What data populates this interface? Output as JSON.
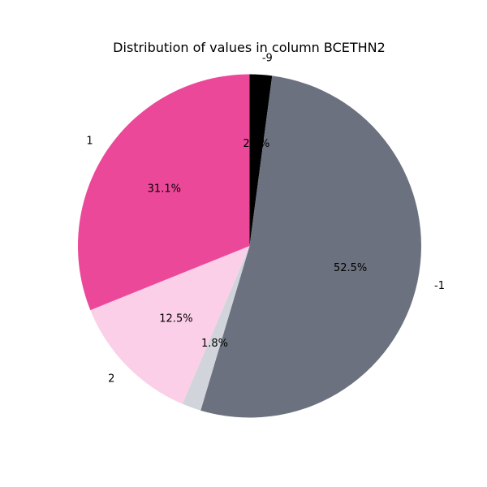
{
  "chart_data": {
    "type": "pie",
    "title": "Distribution of values in column BCETHN2",
    "start_angle_deg": 90,
    "direction": "clockwise",
    "slices": [
      {
        "label": "-9",
        "value": 2.1,
        "pct_label": "2.1%",
        "color": "#000000"
      },
      {
        "label": "-1",
        "value": 52.5,
        "pct_label": "52.5%",
        "color": "#6b717e"
      },
      {
        "label": "",
        "value": 1.8,
        "pct_label": "1.8%",
        "color": "#d1d5db"
      },
      {
        "label": "2",
        "value": 12.5,
        "pct_label": "12.5%",
        "color": "#fbcfe8"
      },
      {
        "label": "1",
        "value": 31.1,
        "pct_label": "31.1%",
        "color": "#ec4899"
      }
    ]
  }
}
